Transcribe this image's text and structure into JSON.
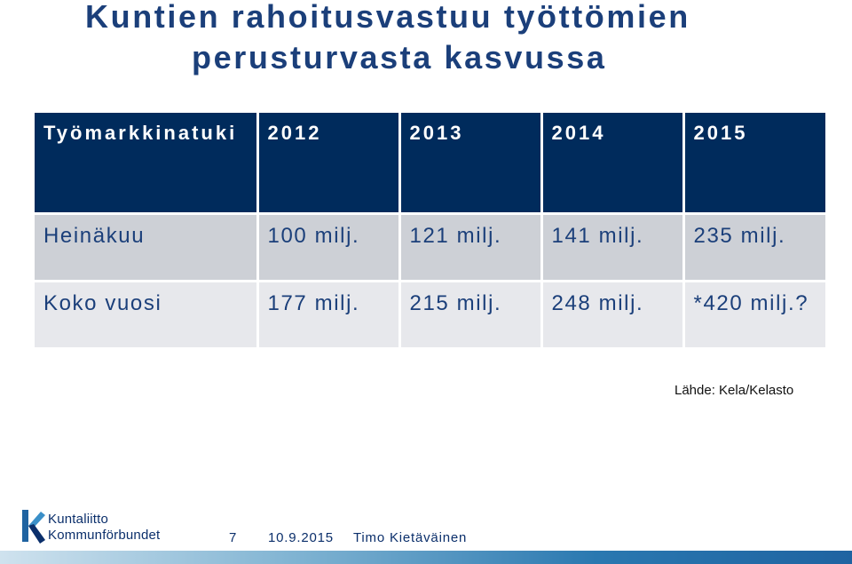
{
  "slide": {
    "title_line1": "Kuntien rahoitusvastuu työttömien",
    "title_line2": "perusturvasta kasvussa"
  },
  "table": {
    "headers": [
      "Työmarkkinatuki",
      "2012",
      "2013",
      "2014",
      "2015"
    ],
    "rows": [
      [
        "Heinäkuu",
        "100 milj.",
        "121 milj.",
        "141 milj.",
        "235 milj."
      ],
      [
        "Koko vuosi",
        "177 milj.",
        "215 milj.",
        "248 milj.",
        "*420 milj.?"
      ]
    ]
  },
  "source": "Lähde: Kela/Kelasto",
  "footer": {
    "logo_line1": "Kuntaliitto",
    "logo_line2": "Kommunförbundet",
    "page_number": "7",
    "date": "10.9.2015",
    "author": "Timo Kietäväinen"
  },
  "colors": {
    "header_bg": "#002b5c",
    "row1_bg": "#cdd0d6",
    "row2_bg": "#e7e8ec",
    "title": "#1b3f7a"
  }
}
